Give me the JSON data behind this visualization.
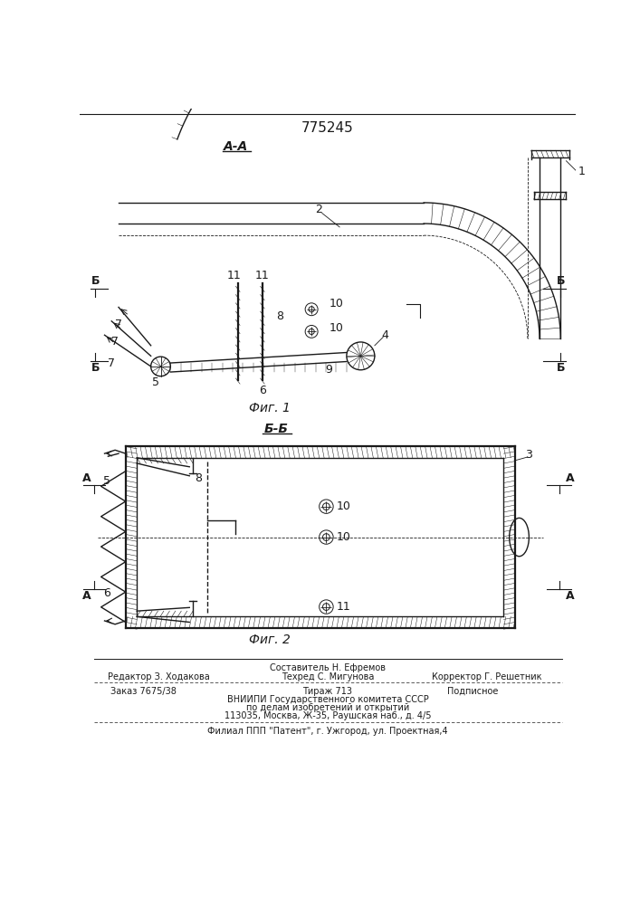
{
  "patent_number": "775245",
  "fig1_label": "А-А",
  "fig2_label": "Б-Б",
  "fig1_caption": "Фиг. 1",
  "fig2_caption": "Фиг. 2",
  "bg_color": "#ffffff",
  "line_color": "#1a1a1a",
  "footer_editor": "Редактор З. Ходакова",
  "footer_composer": "Составитель Н. Ефремов",
  "footer_techred": "Техред С. Мигунова",
  "footer_corrector": "Корректор Г. Решетник",
  "footer_order": "Заказ 7675/38",
  "footer_tirazh": "Тираж 713",
  "footer_podp": "Подписное",
  "footer_vnipi": "ВНИИПИ Государственного комитета СССР",
  "footer_po": "по делам изобретений и открытий",
  "footer_addr": "113035, Москва, Ж-35, Раушская наб., д. 4/5",
  "footer_filial": "Филиал ППП \"Патент\", г. Ужгород, ул. Проектная,4"
}
